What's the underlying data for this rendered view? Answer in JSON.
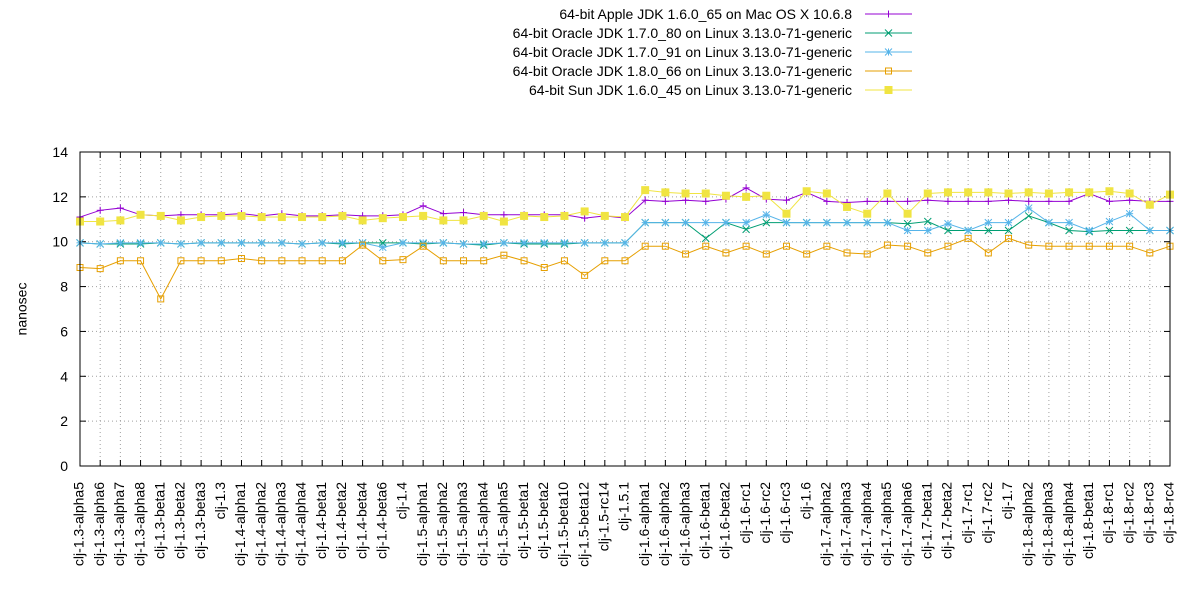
{
  "chart_data": {
    "type": "line",
    "title": "",
    "xlabel": "",
    "ylabel": "nanosec",
    "ylim": [
      0,
      14
    ],
    "yticks": [
      0,
      2,
      4,
      6,
      8,
      10,
      12,
      14
    ],
    "grid": true,
    "legend_position": "top-right",
    "categories": [
      "clj-1.3-alpha5",
      "clj-1.3-alpha6",
      "clj-1.3-alpha7",
      "clj-1.3-alpha8",
      "clj-1.3-beta1",
      "clj-1.3-beta2",
      "clj-1.3-beta3",
      "clj-1.3",
      "clj-1.4-alpha1",
      "clj-1.4-alpha2",
      "clj-1.4-alpha3",
      "clj-1.4-alpha4",
      "clj-1.4-beta1",
      "clj-1.4-beta2",
      "clj-1.4-beta4",
      "clj-1.4-beta6",
      "clj-1.4",
      "clj-1.5-alpha1",
      "clj-1.5-alpha2",
      "clj-1.5-alpha3",
      "clj-1.5-alpha4",
      "clj-1.5-alpha5",
      "clj-1.5-beta1",
      "clj-1.5-beta2",
      "clj-1.5-beta10",
      "clj-1.5-beta12",
      "clj-1.5-rc14",
      "clj-1.5.1",
      "clj-1.6-alpha1",
      "clj-1.6-alpha2",
      "clj-1.6-alpha3",
      "clj-1.6-beta1",
      "clj-1.6-beta2",
      "clj-1.6-rc1",
      "clj-1.6-rc2",
      "clj-1.6-rc3",
      "clj-1.6",
      "clj-1.7-alpha2",
      "clj-1.7-alpha3",
      "clj-1.7-alpha4",
      "clj-1.7-alpha5",
      "clj-1.7-alpha6",
      "clj-1.7-beta1",
      "clj-1.7-beta2",
      "clj-1.7-rc1",
      "clj-1.7-rc2",
      "clj-1.7",
      "clj-1.8-alpha2",
      "clj-1.8-alpha3",
      "clj-1.8-alpha4",
      "clj-1.8-beta1",
      "clj-1.8-rc1",
      "clj-1.8-rc2",
      "clj-1.8-rc3",
      "clj-1.8-rc4"
    ],
    "series": [
      {
        "name": "64-bit Apple JDK 1.6.0_65 on Mac OS X 10.6.8",
        "color": "#9400d3",
        "marker": "plus",
        "values": [
          11.1,
          11.4,
          11.5,
          11.2,
          11.15,
          11.2,
          11.2,
          11.2,
          11.25,
          11.15,
          11.25,
          11.15,
          11.15,
          11.2,
          11.15,
          11.15,
          11.2,
          11.6,
          11.25,
          11.3,
          11.2,
          11.2,
          11.2,
          11.2,
          11.2,
          11.05,
          11.15,
          11.05,
          11.85,
          11.8,
          11.85,
          11.8,
          11.9,
          12.4,
          11.9,
          11.85,
          12.2,
          11.8,
          11.75,
          11.8,
          11.8,
          11.8,
          11.85,
          11.8,
          11.8,
          11.8,
          11.85,
          11.8,
          11.8,
          11.8,
          12.15,
          11.8,
          11.85,
          11.8,
          11.8
        ]
      },
      {
        "name": "64-bit Oracle JDK 1.7.0_80 on Linux 3.13.0-71-generic",
        "color": "#009e73",
        "marker": "x",
        "values": [
          9.95,
          9.9,
          9.9,
          9.9,
          9.95,
          9.9,
          9.95,
          9.95,
          9.95,
          9.95,
          9.95,
          9.9,
          9.95,
          9.9,
          9.95,
          9.95,
          9.95,
          9.9,
          9.95,
          9.9,
          9.85,
          9.95,
          9.9,
          9.9,
          9.9,
          9.95,
          9.95,
          9.95,
          10.85,
          10.85,
          10.85,
          10.15,
          10.85,
          10.55,
          10.85,
          10.85,
          10.85,
          10.85,
          10.85,
          10.85,
          10.85,
          10.8,
          10.9,
          10.5,
          10.5,
          10.5,
          10.5,
          11.15,
          10.85,
          10.5,
          10.45,
          10.5,
          10.5,
          10.5,
          10.5
        ]
      },
      {
        "name": "64-bit Oracle JDK 1.7.0_91 on Linux 3.13.0-71-generic",
        "color": "#56b4e9",
        "marker": "star",
        "values": [
          9.95,
          9.9,
          9.95,
          9.95,
          9.95,
          9.9,
          9.95,
          9.95,
          9.95,
          9.95,
          9.95,
          9.9,
          9.95,
          9.95,
          9.95,
          9.75,
          9.95,
          9.95,
          9.95,
          9.9,
          9.9,
          9.95,
          9.95,
          9.95,
          9.95,
          9.95,
          9.95,
          9.95,
          10.85,
          10.85,
          10.85,
          10.85,
          10.85,
          10.85,
          11.2,
          10.85,
          10.85,
          10.85,
          10.85,
          10.85,
          10.85,
          10.5,
          10.5,
          10.8,
          10.5,
          10.85,
          10.85,
          11.5,
          10.85,
          10.85,
          10.5,
          10.9,
          11.25,
          10.5,
          10.5
        ]
      },
      {
        "name": "64-bit Oracle JDK 1.8.0_66 on Linux 3.13.0-71-generic",
        "color": "#e69f00",
        "marker": "square",
        "values": [
          8.85,
          8.8,
          9.15,
          9.15,
          7.45,
          9.15,
          9.15,
          9.15,
          9.25,
          9.15,
          9.15,
          9.15,
          9.15,
          9.15,
          9.85,
          9.15,
          9.2,
          9.8,
          9.15,
          9.15,
          9.15,
          9.4,
          9.15,
          8.85,
          9.15,
          8.5,
          9.15,
          9.15,
          9.8,
          9.8,
          9.45,
          9.8,
          9.5,
          9.8,
          9.45,
          9.8,
          9.45,
          9.8,
          9.5,
          9.45,
          9.85,
          9.8,
          9.5,
          9.8,
          10.15,
          9.5,
          10.15,
          9.85,
          9.8,
          9.8,
          9.8,
          9.8,
          9.8,
          9.5,
          9.8
        ]
      },
      {
        "name": "64-bit Sun JDK 1.6.0_45 on Linux 3.13.0-71-generic",
        "color": "#f0e442",
        "marker": "filled-square",
        "values": [
          10.9,
          10.9,
          10.95,
          11.2,
          11.15,
          10.95,
          11.1,
          11.15,
          11.15,
          11.1,
          11.1,
          11.1,
          11.1,
          11.15,
          10.95,
          11.05,
          11.1,
          11.15,
          10.95,
          10.95,
          11.15,
          10.9,
          11.15,
          11.1,
          11.15,
          11.35,
          11.15,
          11.1,
          12.3,
          12.2,
          12.15,
          12.15,
          12.05,
          12.0,
          12.05,
          11.25,
          12.25,
          12.15,
          11.55,
          11.25,
          12.15,
          11.25,
          12.15,
          12.2,
          12.2,
          12.2,
          12.15,
          12.2,
          12.15,
          12.2,
          12.2,
          12.25,
          12.15,
          11.65,
          12.1
        ]
      }
    ]
  }
}
